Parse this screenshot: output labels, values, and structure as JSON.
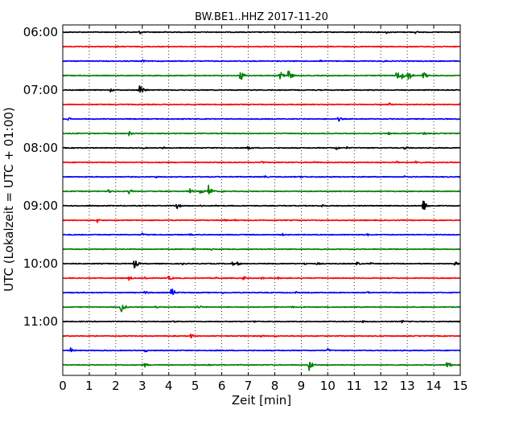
{
  "chart_data": {
    "type": "line",
    "title": "BW.BE1..HHZ 2017-11-20",
    "xlabel": "Zeit  [min]",
    "ylabel": "UTC (Lokalzeit = UTC + 01:00)",
    "xlim": [
      0,
      15
    ],
    "x_ticks": [
      "0",
      "1",
      "2",
      "3",
      "4",
      "5",
      "6",
      "7",
      "8",
      "9",
      "10",
      "11",
      "12",
      "13",
      "14",
      "15"
    ],
    "y_ticks": [
      "06:00",
      "07:00",
      "08:00",
      "09:00",
      "10:00",
      "11:00"
    ],
    "grid": "vertical dotted",
    "trace_colors": [
      "#000000",
      "#ff0000",
      "#0000ff",
      "#008000"
    ],
    "series": [
      {
        "start": "06:00",
        "color": "#000000",
        "events": [
          [
            2.9,
            0.3
          ],
          [
            3.9,
            0.2
          ],
          [
            12.2,
            0.25
          ],
          [
            13.3,
            0.2
          ]
        ]
      },
      {
        "start": "06:15",
        "color": "#ff0000",
        "events": [
          [
            2.0,
            0.25
          ],
          [
            14.0,
            0.2
          ]
        ]
      },
      {
        "start": "06:30",
        "color": "#0000ff",
        "events": [
          [
            3.0,
            0.25
          ],
          [
            9.7,
            0.2
          ],
          [
            12.1,
            0.2
          ]
        ]
      },
      {
        "start": "06:45",
        "color": "#008000",
        "events": [
          [
            6.7,
            0.9
          ],
          [
            8.2,
            1.0
          ],
          [
            8.5,
            1.0
          ],
          [
            12.6,
            0.8
          ],
          [
            12.8,
            0.5
          ],
          [
            13.0,
            1.1
          ],
          [
            13.6,
            0.7
          ]
        ]
      },
      {
        "start": "07:00",
        "color": "#000000",
        "events": [
          [
            1.8,
            0.3
          ],
          [
            2.9,
            0.9
          ],
          [
            3.0,
            0.5
          ]
        ]
      },
      {
        "start": "07:15",
        "color": "#ff0000",
        "events": [
          [
            12.3,
            0.3
          ],
          [
            15.0,
            0.3
          ]
        ]
      },
      {
        "start": "07:30",
        "color": "#0000ff",
        "events": [
          [
            0.2,
            0.25
          ],
          [
            10.4,
            0.4
          ]
        ]
      },
      {
        "start": "07:45",
        "color": "#008000",
        "events": [
          [
            2.5,
            0.4
          ],
          [
            12.3,
            0.25
          ],
          [
            13.6,
            0.3
          ]
        ]
      },
      {
        "start": "08:00",
        "color": "#000000",
        "events": [
          [
            3.0,
            0.2
          ],
          [
            3.8,
            0.2
          ],
          [
            7.0,
            0.4
          ],
          [
            10.3,
            0.4
          ],
          [
            10.7,
            0.2
          ],
          [
            12.9,
            0.35
          ]
        ]
      },
      {
        "start": "08:15",
        "color": "#ff0000",
        "events": [
          [
            7.5,
            0.25
          ],
          [
            9.5,
            0.2
          ],
          [
            12.6,
            0.25
          ],
          [
            13.3,
            0.5
          ]
        ]
      },
      {
        "start": "08:30",
        "color": "#0000ff",
        "events": [
          [
            3.5,
            0.2
          ],
          [
            7.6,
            0.25
          ],
          [
            9.0,
            0.2
          ],
          [
            9.9,
            0.2
          ],
          [
            12.9,
            0.2
          ]
        ]
      },
      {
        "start": "08:45",
        "color": "#008000",
        "events": [
          [
            1.7,
            0.3
          ],
          [
            2.5,
            0.4
          ],
          [
            4.8,
            0.4
          ],
          [
            5.2,
            0.5
          ],
          [
            5.5,
            1.0
          ],
          [
            6.0,
            0.2
          ]
        ]
      },
      {
        "start": "09:00",
        "color": "#000000",
        "events": [
          [
            1.0,
            0.2
          ],
          [
            4.3,
            0.5
          ],
          [
            5.2,
            0.2
          ],
          [
            5.8,
            0.2
          ],
          [
            9.8,
            0.3
          ],
          [
            13.6,
            1.0
          ]
        ]
      },
      {
        "start": "09:15",
        "color": "#ff0000",
        "events": [
          [
            1.3,
            0.35
          ],
          [
            6.1,
            0.2
          ],
          [
            6.5,
            0.2
          ]
        ]
      },
      {
        "start": "09:30",
        "color": "#0000ff",
        "events": [
          [
            3.0,
            0.3
          ],
          [
            4.8,
            0.2
          ],
          [
            8.3,
            0.2
          ],
          [
            11.5,
            0.2
          ]
        ]
      },
      {
        "start": "09:45",
        "color": "#008000",
        "events": [
          [
            4.9,
            0.2
          ],
          [
            5.6,
            0.2
          ]
        ]
      },
      {
        "start": "10:00",
        "color": "#000000",
        "events": [
          [
            2.7,
            0.8
          ],
          [
            4.5,
            0.25
          ],
          [
            6.4,
            0.3
          ],
          [
            6.6,
            0.3
          ],
          [
            9.1,
            0.3
          ],
          [
            9.6,
            0.25
          ],
          [
            11.1,
            0.3
          ],
          [
            11.6,
            0.2
          ],
          [
            14.8,
            0.35
          ]
        ]
      },
      {
        "start": "10:15",
        "color": "#ff0000",
        "events": [
          [
            2.5,
            0.35
          ],
          [
            3.1,
            0.35
          ],
          [
            4.0,
            0.4
          ],
          [
            5.8,
            0.2
          ],
          [
            6.8,
            0.35
          ],
          [
            7.5,
            0.25
          ],
          [
            8.1,
            0.2
          ]
        ]
      },
      {
        "start": "10:30",
        "color": "#0000ff",
        "events": [
          [
            3.1,
            0.3
          ],
          [
            4.1,
            0.8
          ],
          [
            6.0,
            0.2
          ],
          [
            8.8,
            0.2
          ],
          [
            11.5,
            0.2
          ]
        ]
      },
      {
        "start": "10:45",
        "color": "#008000",
        "events": [
          [
            2.2,
            0.9
          ],
          [
            3.5,
            0.3
          ],
          [
            5.1,
            0.35
          ],
          [
            8.6,
            0.25
          ],
          [
            14.0,
            0.2
          ]
        ]
      },
      {
        "start": "11:00",
        "color": "#000000",
        "events": [
          [
            4.2,
            0.25
          ],
          [
            7.2,
            0.2
          ],
          [
            11.3,
            0.2
          ],
          [
            12.8,
            0.25
          ]
        ]
      },
      {
        "start": "11:15",
        "color": "#ff0000",
        "events": [
          [
            4.8,
            0.45
          ],
          [
            7.5,
            0.25
          ],
          [
            8.0,
            0.2
          ]
        ]
      },
      {
        "start": "11:30",
        "color": "#0000ff",
        "events": [
          [
            0.3,
            0.4
          ],
          [
            3.1,
            0.3
          ],
          [
            10.0,
            0.3
          ]
        ]
      },
      {
        "start": "11:45",
        "color": "#008000",
        "events": [
          [
            3.1,
            0.35
          ],
          [
            5.5,
            0.2
          ],
          [
            9.3,
            0.9
          ],
          [
            14.5,
            0.7
          ]
        ]
      }
    ]
  }
}
